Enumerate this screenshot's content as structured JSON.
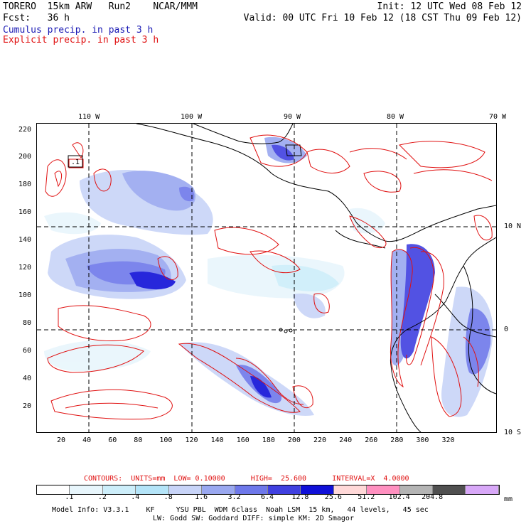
{
  "header": {
    "line1_left": "TORERO  15km ARW   Run2    NCAR/MMM",
    "line1_right": "Init: 12 UTC Wed 08 Feb 12",
    "line2_left": "Fcst:   36 h",
    "line2_right": "Valid: 00 UTC Fri 10 Feb 12 (18 CST Thu 09 Feb 12)",
    "line3": "Cumulus precip. in past 3 h",
    "line4": "Explicit precip. in past 3 h"
  },
  "map": {
    "top_lon_labels": [
      "110 W",
      "100 W",
      "90 W",
      "80 W",
      "70 W"
    ],
    "left_y_labels": [
      "220",
      "200",
      "180",
      "160",
      "140",
      "120",
      "100",
      "80",
      "60",
      "40",
      "20"
    ],
    "bottom_x_labels": [
      "20",
      "40",
      "60",
      "80",
      "100",
      "120",
      "140",
      "160",
      "180",
      "200",
      "220",
      "240",
      "260",
      "280",
      "300",
      "320"
    ],
    "right_lat_labels": [
      "10 N",
      "0",
      "10 S"
    ],
    "box_label": ".1"
  },
  "contour_info": {
    "text": "CONTOURS:  UNITS=mm  LOW= 0.10000      HIGH=  25.600      INTERVAL=X  4.0000"
  },
  "colorbar": {
    "tick_labels": [
      ".1",
      ".2",
      ".4",
      ".8",
      "1.6",
      "3.2",
      "6.4",
      "12.8",
      "25.6",
      "51.2",
      "102.4",
      "204.8"
    ],
    "units": "mm",
    "colors": [
      "#ffffff",
      "#e8f6fc",
      "#cdeefa",
      "#b4e4f8",
      "#c8d4f8",
      "#9aa8f0",
      "#6e78ea",
      "#4040e0",
      "#1010d8",
      "#ffd8d8",
      "#ff90c0",
      "#b4b4b4",
      "#505050",
      "#d8a8f8"
    ]
  },
  "footer": {
    "line1": "Model Info: V3.3.1    KF     YSU PBL  WDM 6class  Noah LSM  15 km,   44 levels,   45 sec",
    "line2": "LW: Godd SW: Goddard DIFF: simple KM: 2D Smagor"
  }
}
